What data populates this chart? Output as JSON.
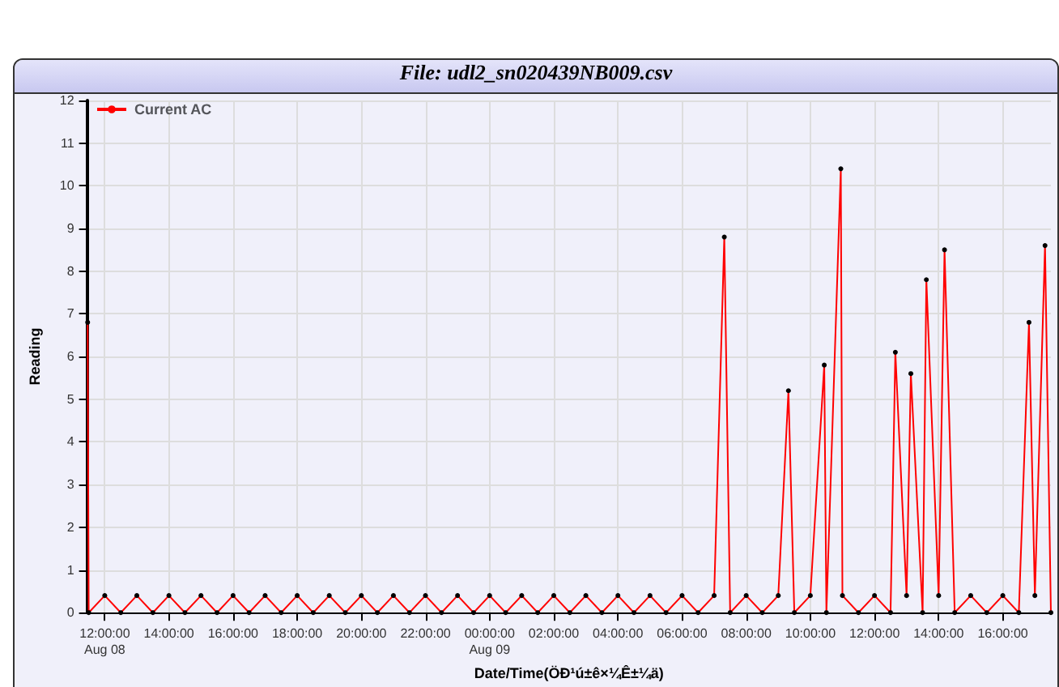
{
  "chart_data": {
    "type": "line",
    "title": "File: udl2_sn020439NB009.csv",
    "xlabel": "Date/Time(ÖÐ¹ú±ê×¼Ê±¼ä)",
    "ylabel": "Reading",
    "xlim": [
      "--08-08T11:27",
      "--08-09T17:30"
    ],
    "xticks": [
      {
        "value": "--08-08T12:00",
        "label": "12:00:00\nAug 08"
      },
      {
        "value": "--08-08T14:00",
        "label": "14:00:00"
      },
      {
        "value": "--08-08T16:00",
        "label": "16:00:00"
      },
      {
        "value": "--08-08T18:00",
        "label": "18:00:00"
      },
      {
        "value": "--08-08T20:00",
        "label": "20:00:00"
      },
      {
        "value": "--08-08T22:00",
        "label": "22:00:00"
      },
      {
        "value": "--08-09T00:00",
        "label": "00:00:00\nAug 09"
      },
      {
        "value": "--08-09T02:00",
        "label": "02:00:00"
      },
      {
        "value": "--08-09T04:00",
        "label": "04:00:00"
      },
      {
        "value": "--08-09T06:00",
        "label": "06:00:00"
      },
      {
        "value": "--08-09T08:00",
        "label": "08:00:00"
      },
      {
        "value": "--08-09T10:00",
        "label": "10:00:00"
      },
      {
        "value": "--08-09T12:00",
        "label": "12:00:00"
      },
      {
        "value": "--08-09T14:00",
        "label": "14:00:00"
      },
      {
        "value": "--08-09T16:00",
        "label": "16:00:00"
      }
    ],
    "ylim": [
      0,
      12
    ],
    "yticks": [
      0,
      1,
      2,
      3,
      4,
      5,
      6,
      7,
      8,
      9,
      10,
      11,
      12
    ],
    "grid": true,
    "legend": "top left",
    "marker": "circle",
    "series": [
      {
        "name": "Current AC",
        "color": "#ff0000",
        "x": [
          "--08-08T11:28",
          "--08-08T11:30",
          "--08-08T12:00",
          "--08-08T12:30",
          "--08-08T13:00",
          "--08-08T13:30",
          "--08-08T14:00",
          "--08-08T14:30",
          "--08-08T15:00",
          "--08-08T15:30",
          "--08-08T16:00",
          "--08-08T16:30",
          "--08-08T17:00",
          "--08-08T17:30",
          "--08-08T18:00",
          "--08-08T18:30",
          "--08-08T19:00",
          "--08-08T19:30",
          "--08-08T20:00",
          "--08-08T20:30",
          "--08-08T21:00",
          "--08-08T21:30",
          "--08-08T22:00",
          "--08-08T22:30",
          "--08-08T23:00",
          "--08-08T23:30",
          "--08-09T00:00",
          "--08-09T00:30",
          "--08-09T01:00",
          "--08-09T01:30",
          "--08-09T02:00",
          "--08-09T02:30",
          "--08-09T03:00",
          "--08-09T03:30",
          "--08-09T04:00",
          "--08-09T04:30",
          "--08-09T05:00",
          "--08-09T05:30",
          "--08-09T06:00",
          "--08-09T06:30",
          "--08-09T07:00",
          "--08-09T07:19",
          "--08-09T07:30",
          "--08-09T08:00",
          "--08-09T08:30",
          "--08-09T09:00",
          "--08-09T09:19",
          "--08-09T09:30",
          "--08-09T10:00",
          "--08-09T10:26",
          "--08-09T10:30",
          "--08-09T10:57",
          "--08-09T11:00",
          "--08-09T11:30",
          "--08-09T12:00",
          "--08-09T12:30",
          "--08-09T12:39",
          "--08-09T13:00",
          "--08-09T13:08",
          "--08-09T13:30",
          "--08-09T13:37",
          "--08-09T14:00",
          "--08-09T14:11",
          "--08-09T14:30",
          "--08-09T15:00",
          "--08-09T15:30",
          "--08-09T16:00",
          "--08-09T16:30",
          "--08-09T16:49",
          "--08-09T17:00",
          "--08-09T17:19",
          "--08-09T17:30"
        ],
        "values": [
          6.8,
          0,
          0.4,
          0,
          0.4,
          0,
          0.4,
          0,
          0.4,
          0,
          0.4,
          0,
          0.4,
          0,
          0.4,
          0,
          0.4,
          0,
          0.4,
          0,
          0.4,
          0,
          0.4,
          0,
          0.4,
          0,
          0.4,
          0,
          0.4,
          0,
          0.4,
          0,
          0.4,
          0,
          0.4,
          0,
          0.4,
          0,
          0.4,
          0,
          0.4,
          8.8,
          0,
          0.4,
          0,
          0.4,
          5.2,
          0,
          0.4,
          5.8,
          0,
          10.4,
          0.4,
          0,
          0.4,
          0,
          6.1,
          0.4,
          5.6,
          0,
          7.8,
          0.4,
          8.5,
          0,
          0.4,
          0,
          0.4,
          0,
          6.8,
          0.4,
          8.6,
          0
        ]
      }
    ]
  }
}
